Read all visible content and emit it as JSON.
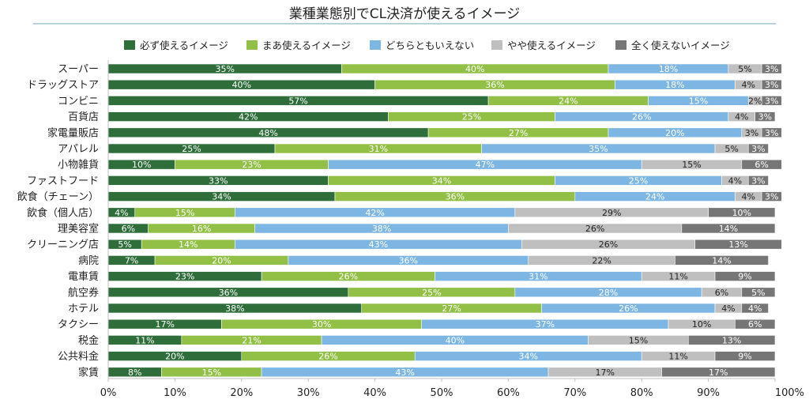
{
  "chart_data": {
    "type": "bar",
    "orientation": "horizontal",
    "stacked": true,
    "title": "業種業態別でCL決済が使えるイメージ",
    "legend_position": "top",
    "grid": false,
    "xlim": [
      0,
      100
    ],
    "x_ticks": [
      "0%",
      "10%",
      "20%",
      "30%",
      "40%",
      "50%",
      "60%",
      "70%",
      "80%",
      "90%",
      "100%"
    ],
    "categories": [
      "スーパー",
      "ドラッグストア",
      "コンビニ",
      "百貨店",
      "家電量販店",
      "アパレル",
      "小物雑貨",
      "ファストフード",
      "飲食（チェーン）",
      "飲食（個人店）",
      "理美容室",
      "クリーニング店",
      "病院",
      "電車賃",
      "航空券",
      "ホテル",
      "タクシー",
      "税金",
      "公共料金",
      "家賃"
    ],
    "series": [
      {
        "name": "必ず使えるイメージ",
        "color": "#2f6e3b",
        "label_color": "#ffffff",
        "values": [
          35,
          40,
          57,
          42,
          48,
          25,
          10,
          33,
          34,
          4,
          6,
          5,
          7,
          23,
          36,
          38,
          17,
          11,
          20,
          8
        ]
      },
      {
        "name": "まあ使えるイメージ",
        "color": "#92bf45",
        "label_color": "#ffffff",
        "values": [
          40,
          36,
          24,
          25,
          27,
          31,
          23,
          34,
          36,
          15,
          16,
          14,
          20,
          26,
          25,
          27,
          30,
          21,
          26,
          15
        ]
      },
      {
        "name": "どちらともいえない",
        "color": "#7db6e2",
        "label_color": "#ffffff",
        "values": [
          18,
          18,
          15,
          26,
          20,
          35,
          47,
          25,
          24,
          42,
          38,
          43,
          36,
          31,
          28,
          26,
          37,
          40,
          34,
          43
        ]
      },
      {
        "name": "やや使えるイメージ",
        "color": "#bfbfbf",
        "label_color": "#222222",
        "values": [
          5,
          4,
          2,
          4,
          3,
          5,
          15,
          4,
          4,
          29,
          26,
          26,
          22,
          11,
          6,
          4,
          10,
          15,
          11,
          17
        ]
      },
      {
        "name": "全く使えないイメージ",
        "color": "#767676",
        "label_color": "#ffffff",
        "values": [
          3,
          3,
          3,
          3,
          3,
          3,
          6,
          3,
          3,
          10,
          14,
          13,
          14,
          9,
          5,
          4,
          6,
          13,
          9,
          17
        ]
      }
    ]
  }
}
